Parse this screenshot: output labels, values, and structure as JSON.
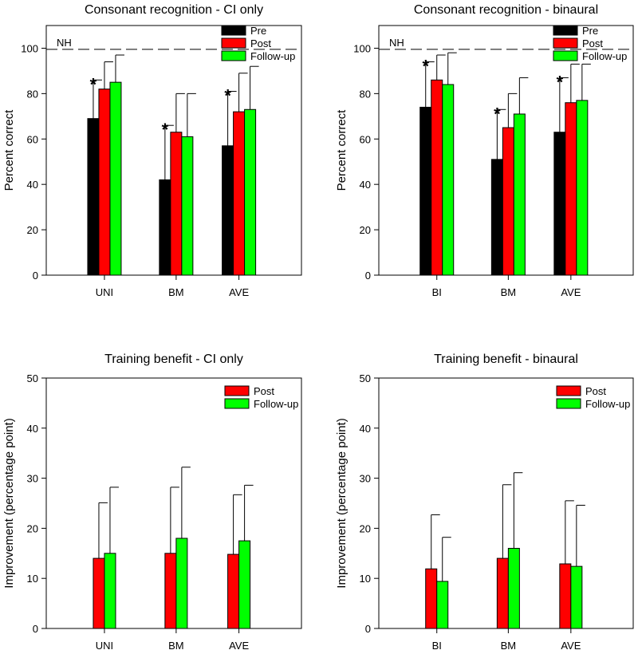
{
  "chart_data": [
    {
      "type": "bar",
      "title": "Consonant recognition - CI only",
      "xlabel": "",
      "ylabel": "Percent correct",
      "ylim": [
        0,
        110
      ],
      "yticks": [
        0,
        20,
        40,
        60,
        80,
        100
      ],
      "categories": [
        "UNI",
        "BM",
        "AVE"
      ],
      "legend": {
        "position": "top-right"
      },
      "series": [
        {
          "name": "Pre",
          "color": "#000000",
          "values": [
            69,
            42,
            57
          ],
          "err": [
            86,
            66,
            81
          ],
          "sig": [
            true,
            true,
            true
          ]
        },
        {
          "name": "Post",
          "color": "#ff0000",
          "values": [
            82,
            63,
            72
          ],
          "err": [
            94,
            80,
            89
          ]
        },
        {
          "name": "Follow-up",
          "color": "#00ff00",
          "values": [
            85,
            61,
            73
          ],
          "err": [
            97,
            80,
            92
          ]
        }
      ],
      "ref_line": {
        "label": "NH",
        "value": 99.5
      },
      "sig_marker": "*"
    },
    {
      "type": "bar",
      "title": "Consonant recognition - binaural",
      "xlabel": "",
      "ylabel": "Percent correct",
      "ylim": [
        0,
        110
      ],
      "yticks": [
        0,
        20,
        40,
        60,
        80,
        100
      ],
      "categories": [
        "BI",
        "BM",
        "AVE"
      ],
      "legend": {
        "position": "top-right"
      },
      "series": [
        {
          "name": "Pre",
          "color": "#000000",
          "values": [
            74,
            51,
            63
          ],
          "err": [
            94,
            73,
            87
          ],
          "sig": [
            true,
            true,
            true
          ]
        },
        {
          "name": "Post",
          "color": "#ff0000",
          "values": [
            86,
            65,
            76
          ],
          "err": [
            97,
            80,
            93
          ]
        },
        {
          "name": "Follow-up",
          "color": "#00ff00",
          "values": [
            84,
            71,
            77
          ],
          "err": [
            98,
            87,
            93
          ]
        }
      ],
      "ref_line": {
        "label": "NH",
        "value": 99.5
      },
      "sig_marker": "*"
    },
    {
      "type": "bar",
      "title": "Training benefit - CI only",
      "xlabel": "",
      "ylabel": "Improvement (percentage point)",
      "ylim": [
        0,
        50
      ],
      "yticks": [
        0,
        10,
        20,
        30,
        40,
        50
      ],
      "categories": [
        "UNI",
        "BM",
        "AVE"
      ],
      "legend": {
        "position": "top-right"
      },
      "series": [
        {
          "name": "Post",
          "color": "#ff0000",
          "values": [
            14.0,
            15.0,
            14.8
          ],
          "err": [
            25.1,
            28.2,
            26.7
          ]
        },
        {
          "name": "Follow-up",
          "color": "#00ff00",
          "values": [
            15.0,
            18.0,
            17.5
          ],
          "err": [
            28.2,
            32.2,
            28.6
          ]
        }
      ]
    },
    {
      "type": "bar",
      "title": "Training benefit - binaural",
      "xlabel": "",
      "ylabel": "Improvement (percentage point)",
      "ylim": [
        0,
        50
      ],
      "yticks": [
        0,
        10,
        20,
        30,
        40,
        50
      ],
      "categories": [
        "BI",
        "BM",
        "AVE"
      ],
      "legend": {
        "position": "top-right"
      },
      "series": [
        {
          "name": "Post",
          "color": "#ff0000",
          "values": [
            11.9,
            14.0,
            12.9
          ],
          "err": [
            22.7,
            28.7,
            25.5
          ]
        },
        {
          "name": "Follow-up",
          "color": "#00ff00",
          "values": [
            9.4,
            16.0,
            12.4
          ],
          "err": [
            18.2,
            31.1,
            24.6
          ]
        }
      ]
    }
  ]
}
